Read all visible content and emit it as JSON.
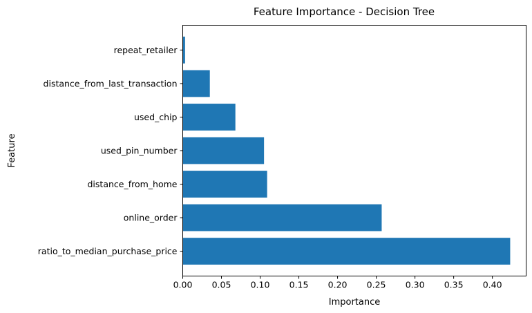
{
  "chart_data": {
    "type": "bar",
    "orientation": "horizontal",
    "title": "Feature Importance - Decision Tree",
    "xlabel": "Importance",
    "ylabel": "Feature",
    "categories": [
      "ratio_to_median_purchase_price",
      "online_order",
      "distance_from_home",
      "used_pin_number",
      "used_chip",
      "distance_from_last_transaction",
      "repeat_retailer"
    ],
    "values": [
      0.423,
      0.257,
      0.109,
      0.105,
      0.068,
      0.035,
      0.003
    ],
    "xlim": [
      0,
      0.4436
    ],
    "xticks": [
      "0.00",
      "0.05",
      "0.10",
      "0.15",
      "0.20",
      "0.25",
      "0.30",
      "0.35",
      "0.40"
    ],
    "bar_color": "#1f77b4",
    "grid": false,
    "legend": "none"
  }
}
